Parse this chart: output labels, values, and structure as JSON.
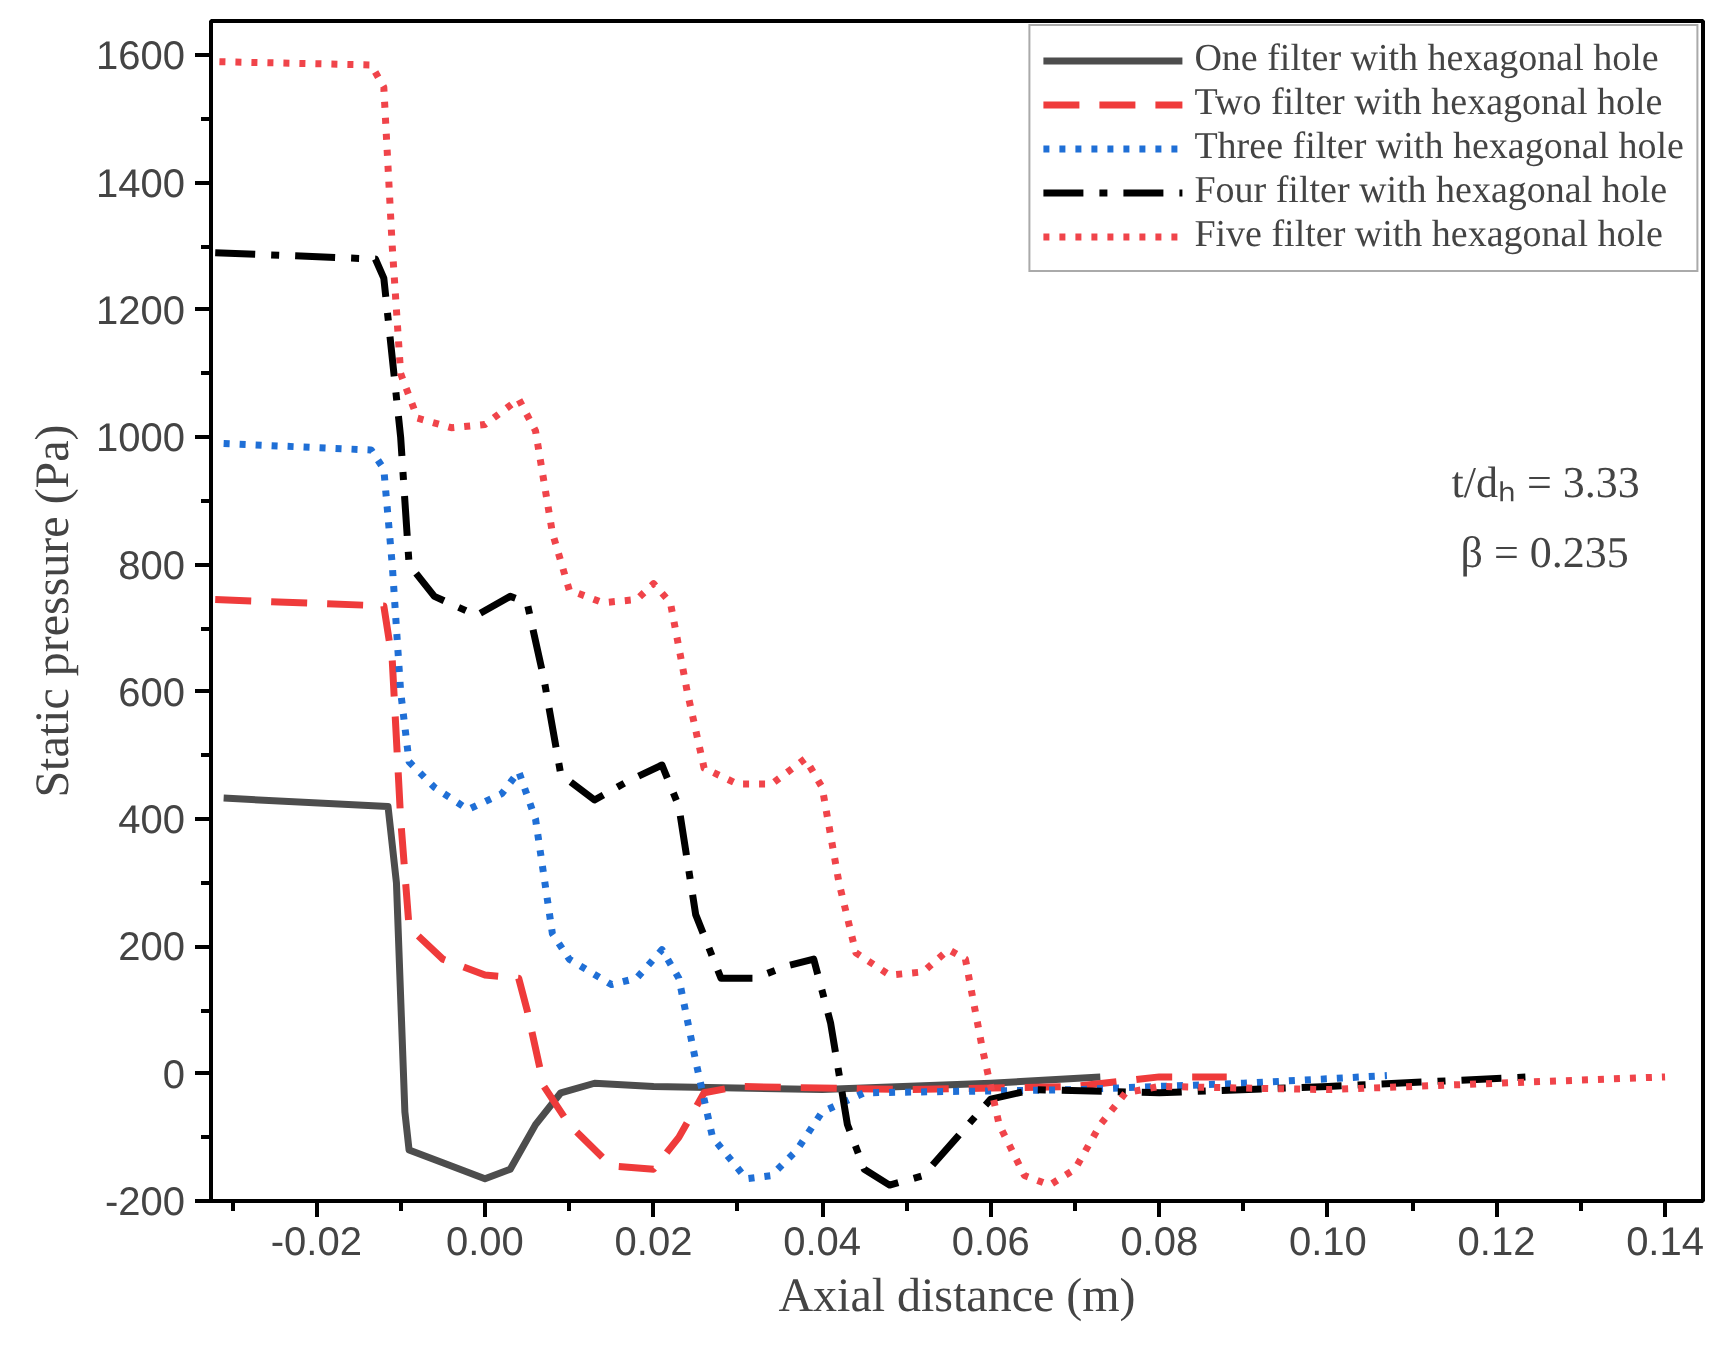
{
  "chart_data": {
    "type": "line",
    "xlabel": "Axial distance (m)",
    "ylabel": "Static pressure (Pa)",
    "xlim": [
      -0.0325,
      0.1445
    ],
    "ylim": [
      -200,
      1654
    ],
    "xticks": [
      {
        "value": -0.02,
        "label": "-0.02"
      },
      {
        "value": 0,
        "label": "0.00"
      },
      {
        "value": 0.02,
        "label": "0.02"
      },
      {
        "value": 0.04,
        "label": "0.04"
      },
      {
        "value": 0.06,
        "label": "0.06"
      },
      {
        "value": 0.08,
        "label": "0.08"
      },
      {
        "value": 0.1,
        "label": "0.10"
      },
      {
        "value": 0.12,
        "label": "0.12"
      },
      {
        "value": 0.14,
        "label": "0.14"
      }
    ],
    "yticks": [
      -200,
      0,
      200,
      400,
      600,
      800,
      1000,
      1200,
      1400,
      1600
    ],
    "grid": false,
    "legend": "top right",
    "marker": "none",
    "annotations": [
      "t/dₕ = 3.33",
      "β  = 0.235"
    ],
    "series": [
      {
        "name": "One filter with hexagonal hole",
        "color": "#4d4d4d",
        "line_style": "solid",
        "x": [
          -0.031,
          -0.0115,
          -0.0105,
          -0.0095,
          -0.009,
          -0.005,
          0.0,
          0.003,
          0.006,
          0.009,
          0.013,
          0.02,
          0.04,
          0.06,
          0.073
        ],
        "values": [
          433,
          420,
          300,
          -60,
          -120,
          -140,
          -165,
          -150,
          -80,
          -30,
          -15,
          -20,
          -25,
          -15,
          -5
        ]
      },
      {
        "name": "Two filter with hexagonal hole",
        "color": "#ef3b3b",
        "line_style": "dashed",
        "x": [
          -0.032,
          -0.012,
          -0.011,
          -0.01,
          -0.009,
          -0.005,
          0.0,
          0.004,
          0.005,
          0.007,
          0.01,
          0.015,
          0.02,
          0.023,
          0.026,
          0.03,
          0.05,
          0.07,
          0.08,
          0.088
        ],
        "values": [
          745,
          735,
          650,
          400,
          230,
          180,
          155,
          150,
          100,
          -20,
          -80,
          -145,
          -150,
          -100,
          -30,
          -20,
          -25,
          -20,
          -5,
          -5
        ]
      },
      {
        "name": "Three filter with hexagonal hole",
        "color": "#1f6fd6",
        "line_style": "dotted",
        "x": [
          -0.031,
          -0.0135,
          -0.012,
          -0.011,
          -0.01,
          -0.009,
          -0.006,
          -0.002,
          0.002,
          0.004,
          0.006,
          0.008,
          0.01,
          0.015,
          0.018,
          0.021,
          0.023,
          0.025,
          0.027,
          0.031,
          0.034,
          0.037,
          0.04,
          0.045,
          0.07,
          0.09,
          0.107
        ],
        "values": [
          990,
          980,
          950,
          800,
          600,
          490,
          450,
          415,
          440,
          475,
          400,
          220,
          180,
          140,
          150,
          195,
          150,
          20,
          -100,
          -165,
          -160,
          -120,
          -60,
          -30,
          -25,
          -15,
          -3
        ]
      },
      {
        "name": "Four filter with hexagonal hole",
        "color": "#000000",
        "line_style": "dashdot",
        "x": [
          -0.032,
          -0.013,
          -0.012,
          -0.01,
          -0.009,
          -0.006,
          -0.001,
          0.003,
          0.005,
          0.007,
          0.009,
          0.013,
          0.017,
          0.021,
          0.023,
          0.025,
          0.028,
          0.032,
          0.036,
          0.039,
          0.041,
          0.043,
          0.045,
          0.048,
          0.052,
          0.056,
          0.06,
          0.065,
          0.08,
          0.1,
          0.124
        ],
        "values": [
          1290,
          1280,
          1250,
          1000,
          800,
          750,
          720,
          750,
          740,
          620,
          470,
          430,
          460,
          485,
          420,
          250,
          150,
          150,
          170,
          180,
          80,
          -80,
          -150,
          -175,
          -160,
          -100,
          -40,
          -25,
          -30,
          -20,
          -5
        ]
      },
      {
        "name": "Five filter with hexagonal hole",
        "color": "#f0444a",
        "line_style": "dotted",
        "x": [
          -0.0315,
          -0.0135,
          -0.012,
          -0.011,
          -0.01,
          -0.008,
          -0.004,
          0.0,
          0.004,
          0.006,
          0.008,
          0.01,
          0.014,
          0.018,
          0.02,
          0.022,
          0.024,
          0.026,
          0.03,
          0.034,
          0.038,
          0.04,
          0.042,
          0.044,
          0.048,
          0.052,
          0.055,
          0.057,
          0.059,
          0.061,
          0.064,
          0.067,
          0.07,
          0.073,
          0.076,
          0.08,
          0.1,
          0.12,
          0.14
        ],
        "values": [
          1590,
          1585,
          1550,
          1300,
          1100,
          1030,
          1015,
          1020,
          1060,
          1010,
          850,
          760,
          740,
          745,
          770,
          740,
          600,
          480,
          455,
          455,
          495,
          450,
          300,
          190,
          155,
          160,
          195,
          180,
          40,
          -80,
          -160,
          -175,
          -150,
          -80,
          -30,
          -20,
          -25,
          -15,
          -5
        ]
      }
    ]
  }
}
